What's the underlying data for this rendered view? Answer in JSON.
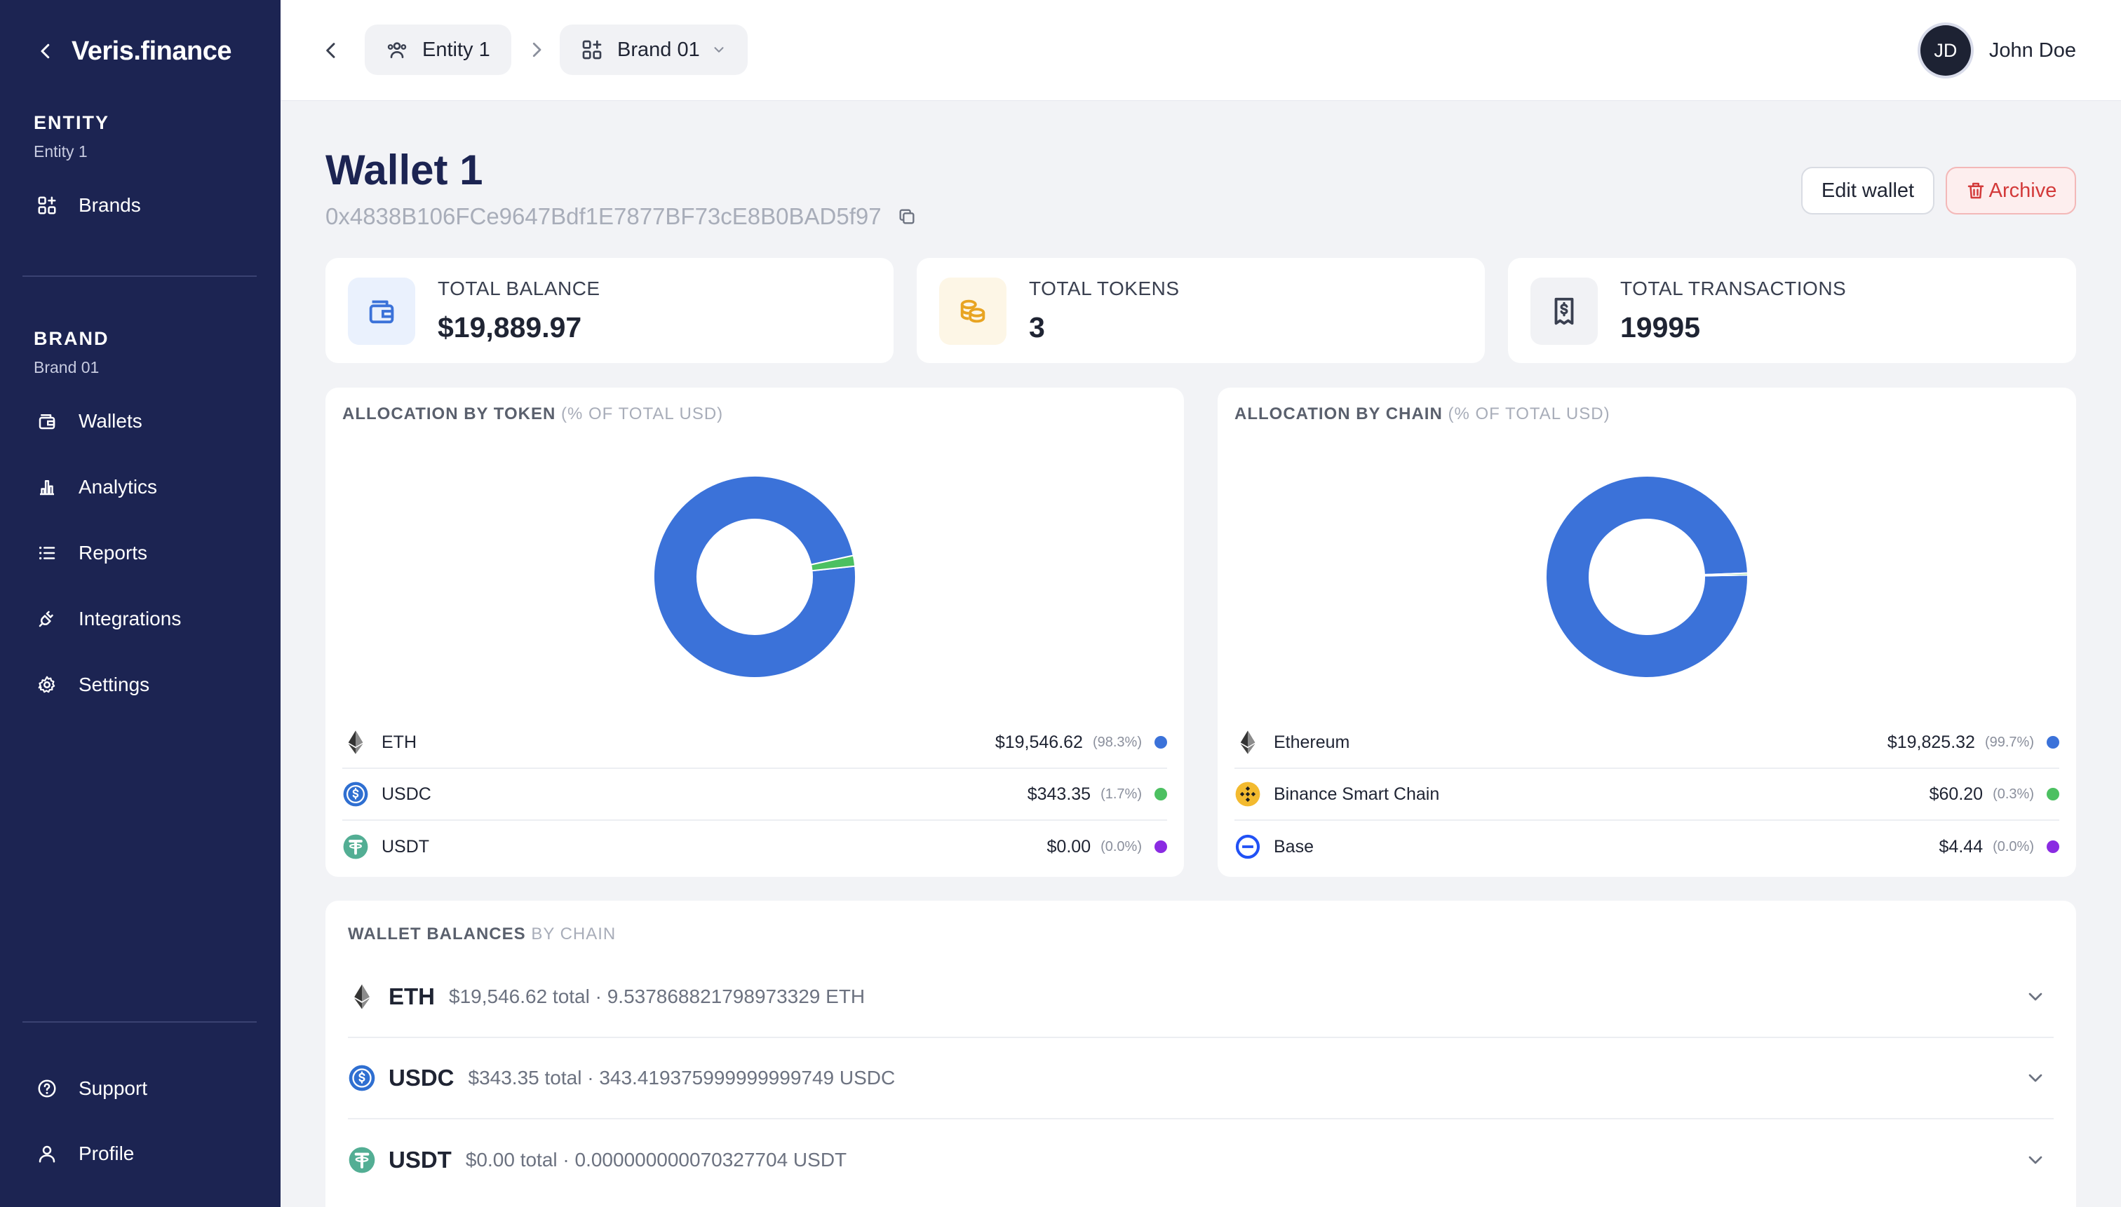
{
  "sidebar": {
    "logo": "Veris.finance",
    "entity_section": {
      "title": "ENTITY",
      "subtitle": "Entity 1",
      "items": [
        {
          "label": "Brands",
          "icon": "grid-icon"
        }
      ]
    },
    "brand_section": {
      "title": "BRAND",
      "subtitle": "Brand 01",
      "items": [
        {
          "label": "Wallets",
          "icon": "wallet-icon"
        },
        {
          "label": "Analytics",
          "icon": "bar-chart-icon"
        },
        {
          "label": "Reports",
          "icon": "list-icon"
        },
        {
          "label": "Integrations",
          "icon": "plug-icon"
        },
        {
          "label": "Settings",
          "icon": "gear-icon"
        }
      ]
    },
    "footer_items": [
      {
        "label": "Support",
        "icon": "help-icon"
      },
      {
        "label": "Profile",
        "icon": "user-icon"
      }
    ]
  },
  "topbar": {
    "breadcrumb": [
      {
        "label": "Entity 1",
        "icon": "users-icon"
      },
      {
        "label": "Brand 01",
        "icon": "grid-icon"
      }
    ],
    "user": {
      "initials": "JD",
      "name": "John Doe"
    }
  },
  "wallet": {
    "title": "Wallet 1",
    "address": "0x4838B106FCe9647Bdf1E7877BF73cE8B0BAD5f97",
    "edit_label": "Edit wallet",
    "archive_label": "Archive"
  },
  "stats": [
    {
      "label": "TOTAL BALANCE",
      "value": "$19,889.97",
      "icon": "wallet-icon",
      "color": "#3b72d9"
    },
    {
      "label": "TOTAL TOKENS",
      "value": "3",
      "icon": "coins-icon",
      "color": "#e8a422"
    },
    {
      "label": "TOTAL TRANSACTIONS",
      "value": "19995",
      "icon": "receipt-icon",
      "color": "#3a4050"
    }
  ],
  "allocation_token": {
    "title": "ALLOCATION BY TOKEN",
    "subtitle": "(% OF TOTAL USD)",
    "items": [
      {
        "name": "ETH",
        "value": "$19,546.62",
        "pct": "(98.3%)",
        "share": 98.3,
        "color": "#3b72d9",
        "icon": "eth-icon"
      },
      {
        "name": "USDC",
        "value": "$343.35",
        "pct": "(1.7%)",
        "share": 1.7,
        "color": "#4cc061",
        "icon": "usdc-icon"
      },
      {
        "name": "USDT",
        "value": "$0.00",
        "pct": "(0.0%)",
        "share": 0.0,
        "color": "#8a2be2",
        "icon": "usdt-icon"
      }
    ]
  },
  "allocation_chain": {
    "title": "ALLOCATION BY CHAIN",
    "subtitle": "(% OF TOTAL USD)",
    "items": [
      {
        "name": "Ethereum",
        "value": "$19,825.32",
        "pct": "(99.7%)",
        "share": 99.7,
        "color": "#3b72d9",
        "icon": "eth-icon"
      },
      {
        "name": "Binance Smart Chain",
        "value": "$60.20",
        "pct": "(0.3%)",
        "share": 0.3,
        "color": "#4cc061",
        "icon": "bnb-icon"
      },
      {
        "name": "Base",
        "value": "$4.44",
        "pct": "(0.0%)",
        "share": 0.0,
        "color": "#8a2be2",
        "icon": "base-icon"
      }
    ]
  },
  "balances": {
    "title": "WALLET BALANCES",
    "subtitle": "BY CHAIN",
    "rows": [
      {
        "symbol": "ETH",
        "detail": "$19,546.62 total · 9.537868821798973329 ETH",
        "icon": "eth-icon"
      },
      {
        "symbol": "USDC",
        "detail": "$343.35 total · 343.419375999999999749 USDC",
        "icon": "usdc-icon"
      },
      {
        "symbol": "USDT",
        "detail": "$0.00 total · 0.000000000070327704 USDT",
        "icon": "usdt-icon"
      }
    ]
  }
}
